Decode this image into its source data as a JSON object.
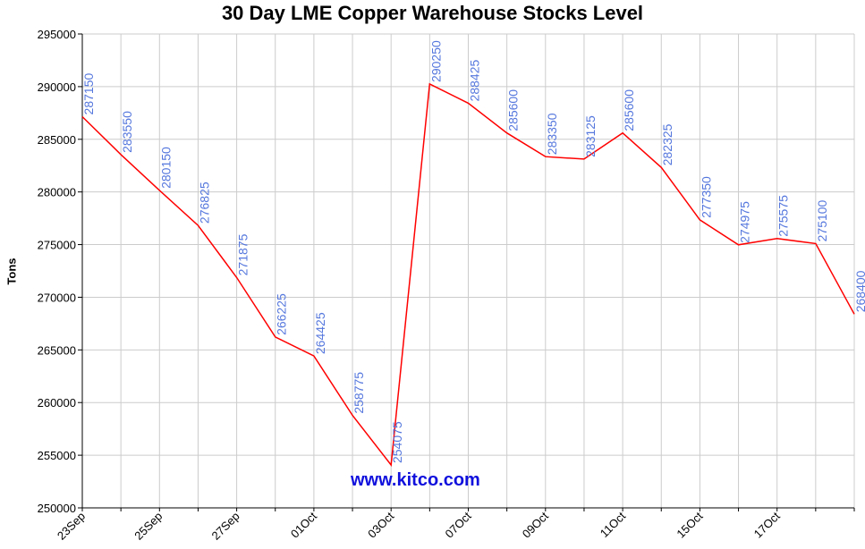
{
  "chart_data": {
    "type": "line",
    "title": "30 Day LME Copper Warehouse Stocks Level",
    "ylabel": "Tons",
    "xlabel": "",
    "ylim": [
      250000,
      295000
    ],
    "yticks": [
      250000,
      255000,
      260000,
      265000,
      270000,
      275000,
      280000,
      285000,
      290000,
      295000
    ],
    "x_tick_labels": [
      "23Sep",
      "25Sep",
      "27Sep",
      "01Oct",
      "03Oct",
      "07Oct",
      "09Oct",
      "11Oct",
      "15Oct",
      "17Oct"
    ],
    "grid": true,
    "line_color": "#ff0000",
    "label_color": "#5577dd",
    "series": [
      {
        "values": [
          287150,
          283550,
          280150,
          276825,
          271875,
          266225,
          264425,
          258775,
          254075,
          290250,
          288425,
          285600,
          283350,
          283125,
          285600,
          282325,
          277350,
          274975,
          275575,
          275100,
          268400
        ]
      }
    ],
    "watermark": "www.kitco.com"
  }
}
